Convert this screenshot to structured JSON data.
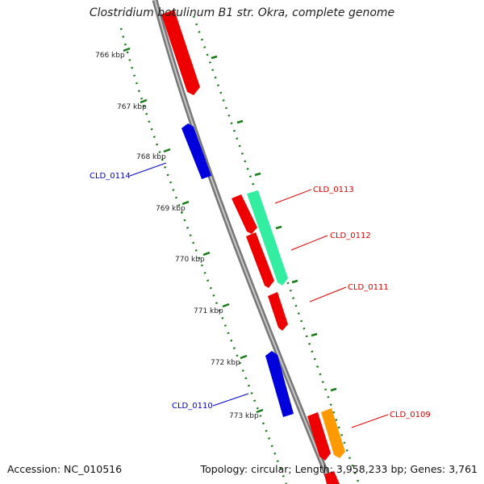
{
  "title": "Clostridium botulinum B1 str. Okra, complete genome",
  "footer": {
    "accession": "Accession: NC_010516",
    "summary": "Topology: circular; Length: 3,958,233 bp; Genes: 3,761"
  },
  "colors": {
    "backbone": "#8c8c8c",
    "tick": "#1a7a1a",
    "forward_gene": "#ee0000",
    "reverse_gene": "#0000dd",
    "highlight_gene": "#33eea0",
    "orange_gene": "#ff9900",
    "label_red": "#dd0000",
    "label_blue": "#0000cc"
  },
  "ticks": [
    "766 kbp",
    "767 kbp",
    "768 kbp",
    "769 kbp",
    "770 kbp",
    "771 kbp",
    "772 kbp",
    "773 kbp"
  ],
  "gene_labels": [
    "CLD_0113",
    "CLD_0112",
    "CLD_0111",
    "CLD_0109",
    "CLD_0114",
    "CLD_0110"
  ]
}
